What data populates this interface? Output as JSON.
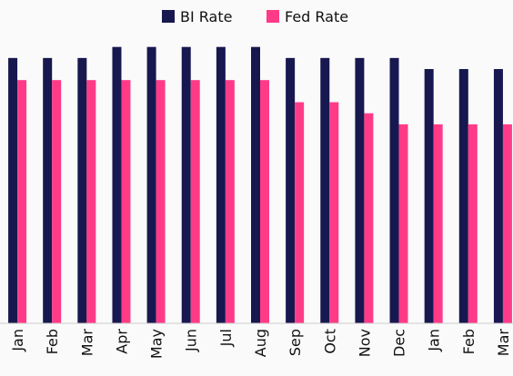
{
  "chart_data": {
    "type": "bar",
    "categories": [
      "Jan",
      "Feb",
      "Mar",
      "Apr",
      "May",
      "Jun",
      "Jul",
      "Aug",
      "Sep",
      "Oct",
      "Nov",
      "Dec",
      "Jan",
      "Feb",
      "Mar"
    ],
    "series": [
      {
        "name": "BI Rate",
        "color": "#181850",
        "values": [
          6,
          6,
          6,
          6.25,
          6.25,
          6.25,
          6.25,
          6.25,
          6,
          6,
          6,
          6,
          5.75,
          5.75,
          5.75
        ]
      },
      {
        "name": "Fed Rate",
        "color": "#ff3b88",
        "values": [
          5.5,
          5.5,
          5.5,
          5.5,
          5.5,
          5.5,
          5.5,
          5.5,
          5,
          5,
          4.75,
          4.5,
          4.5,
          4.5,
          4.5
        ]
      }
    ],
    "ylim": [
      0,
      6.5
    ],
    "legend": "top"
  }
}
